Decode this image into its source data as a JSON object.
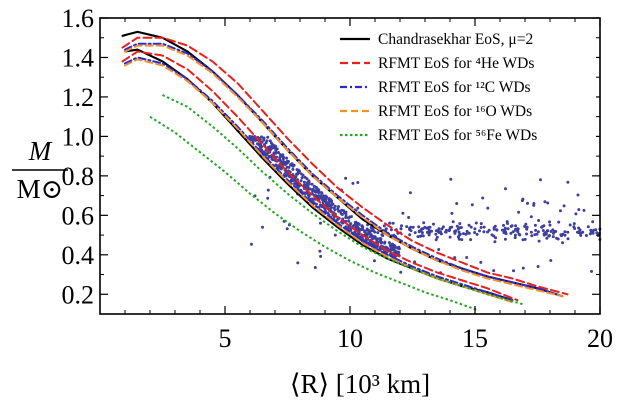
{
  "chart_data": {
    "type": "line",
    "xlabel": "⟨R⟩ [10³ km]",
    "ylabel_numerator": "M",
    "ylabel_denominator": "M⊙",
    "xlim": [
      0,
      20
    ],
    "ylim": [
      0.1,
      1.6
    ],
    "x_ticks": [
      "5",
      "10",
      "15",
      "20"
    ],
    "y_ticks": [
      "0.2",
      "0.4",
      "0.6",
      "0.8",
      "1.0",
      "1.2",
      "1.4",
      "1.6"
    ],
    "x_tick_values": [
      5,
      10,
      15,
      20
    ],
    "y_tick_values": [
      0.2,
      0.4,
      0.6,
      0.8,
      1.0,
      1.2,
      1.4,
      1.6
    ],
    "legend_position": "top-right",
    "grid": false,
    "legend": [
      {
        "key": "chandra",
        "label": "Chandrasekhar EoS, μ=2",
        "color": "#000000",
        "dash": ""
      },
      {
        "key": "he",
        "label": "RFMT EoS for ⁴He WDs",
        "color": "#e8201e",
        "dash": "8,4"
      },
      {
        "key": "c",
        "label": "RFMT EoS for ¹²C WDs",
        "color": "#2a2ad0",
        "dash": "7,3,2,3"
      },
      {
        "key": "o",
        "label": "RFMT EoS for ¹⁶O WDs",
        "color": "#f59226",
        "dash": "7,4"
      },
      {
        "key": "fe",
        "label": "RFMT EoS for ⁵⁶Fe WDs",
        "color": "#21a81f",
        "dash": "2.5,2.5"
      }
    ],
    "series": [
      {
        "key": "chandra",
        "points": [
          [
            0.9,
            1.51
          ],
          [
            1.5,
            1.53
          ],
          [
            2.5,
            1.5
          ],
          [
            3.5,
            1.43
          ],
          [
            4.5,
            1.33
          ],
          [
            5.5,
            1.21
          ],
          [
            6.5,
            1.07
          ],
          [
            7.5,
            0.93
          ],
          [
            8.5,
            0.8
          ],
          [
            9.5,
            0.69
          ],
          [
            10.5,
            0.58
          ],
          [
            11.5,
            0.5
          ],
          [
            12.5,
            0.43
          ],
          [
            13.5,
            0.37
          ],
          [
            14.5,
            0.33
          ],
          [
            15.5,
            0.29
          ],
          [
            16.5,
            0.26
          ],
          [
            17.5,
            0.23
          ],
          [
            18.5,
            0.19
          ]
        ]
      },
      {
        "key": "chandra",
        "points": [
          [
            1.0,
            1.43
          ],
          [
            1.5,
            1.44
          ],
          [
            2.5,
            1.38
          ],
          [
            3.5,
            1.29
          ],
          [
            4.5,
            1.17
          ],
          [
            5.5,
            1.03
          ],
          [
            6.5,
            0.89
          ],
          [
            7.5,
            0.76
          ],
          [
            8.5,
            0.64
          ],
          [
            9.5,
            0.54
          ],
          [
            10.5,
            0.45
          ],
          [
            11.5,
            0.38
          ],
          [
            12.5,
            0.33
          ],
          [
            13.5,
            0.28
          ],
          [
            14.5,
            0.24
          ],
          [
            15.5,
            0.21
          ],
          [
            16.5,
            0.17
          ]
        ]
      },
      {
        "key": "he",
        "points": [
          [
            0.9,
            1.45
          ],
          [
            1.5,
            1.5
          ],
          [
            2.5,
            1.5
          ],
          [
            3.5,
            1.46
          ],
          [
            4.5,
            1.38
          ],
          [
            5.5,
            1.27
          ],
          [
            6.5,
            1.13
          ],
          [
            7.5,
            0.99
          ],
          [
            8.5,
            0.86
          ],
          [
            9.5,
            0.74
          ],
          [
            10.5,
            0.64
          ],
          [
            11.5,
            0.55
          ],
          [
            12.5,
            0.47
          ],
          [
            13.5,
            0.41
          ],
          [
            14.5,
            0.36
          ],
          [
            15.5,
            0.31
          ],
          [
            16.5,
            0.28
          ],
          [
            17.5,
            0.24
          ],
          [
            18.7,
            0.2
          ]
        ]
      },
      {
        "key": "he",
        "points": [
          [
            0.9,
            1.38
          ],
          [
            1.5,
            1.43
          ],
          [
            2.5,
            1.41
          ],
          [
            3.5,
            1.34
          ],
          [
            4.5,
            1.23
          ],
          [
            5.5,
            1.1
          ],
          [
            6.5,
            0.96
          ],
          [
            7.5,
            0.82
          ],
          [
            8.5,
            0.7
          ],
          [
            9.5,
            0.59
          ],
          [
            10.5,
            0.5
          ],
          [
            11.5,
            0.42
          ],
          [
            12.5,
            0.36
          ],
          [
            13.5,
            0.31
          ],
          [
            14.5,
            0.27
          ],
          [
            15.5,
            0.23
          ],
          [
            16.7,
            0.17
          ]
        ]
      },
      {
        "key": "c",
        "points": [
          [
            1.0,
            1.44
          ],
          [
            1.5,
            1.47
          ],
          [
            2.5,
            1.47
          ],
          [
            3.5,
            1.42
          ],
          [
            4.5,
            1.33
          ],
          [
            5.5,
            1.21
          ],
          [
            6.5,
            1.08
          ],
          [
            7.5,
            0.94
          ],
          [
            8.5,
            0.81
          ],
          [
            9.5,
            0.7
          ],
          [
            10.5,
            0.6
          ],
          [
            11.5,
            0.51
          ],
          [
            12.5,
            0.44
          ],
          [
            13.5,
            0.38
          ],
          [
            14.5,
            0.33
          ],
          [
            15.5,
            0.29
          ],
          [
            16.5,
            0.26
          ],
          [
            17.5,
            0.23
          ],
          [
            18.5,
            0.19
          ]
        ]
      },
      {
        "key": "c",
        "points": [
          [
            1.0,
            1.37
          ],
          [
            1.5,
            1.4
          ],
          [
            2.5,
            1.37
          ],
          [
            3.5,
            1.29
          ],
          [
            4.5,
            1.18
          ],
          [
            5.5,
            1.05
          ],
          [
            6.5,
            0.91
          ],
          [
            7.5,
            0.78
          ],
          [
            8.5,
            0.66
          ],
          [
            9.5,
            0.56
          ],
          [
            10.5,
            0.47
          ],
          [
            11.5,
            0.4
          ],
          [
            12.5,
            0.34
          ],
          [
            13.5,
            0.29
          ],
          [
            14.5,
            0.25
          ],
          [
            15.5,
            0.21
          ],
          [
            16.5,
            0.17
          ]
        ]
      },
      {
        "key": "o",
        "points": [
          [
            1.0,
            1.43
          ],
          [
            1.5,
            1.46
          ],
          [
            2.5,
            1.46
          ],
          [
            3.5,
            1.41
          ],
          [
            4.5,
            1.32
          ],
          [
            5.5,
            1.2
          ],
          [
            6.5,
            1.07
          ],
          [
            7.5,
            0.93
          ],
          [
            8.5,
            0.8
          ],
          [
            9.5,
            0.69
          ],
          [
            10.5,
            0.59
          ],
          [
            11.5,
            0.5
          ],
          [
            12.5,
            0.43
          ],
          [
            13.5,
            0.37
          ],
          [
            14.5,
            0.32
          ],
          [
            15.5,
            0.28
          ],
          [
            16.5,
            0.25
          ],
          [
            17.5,
            0.22
          ],
          [
            18.5,
            0.19
          ]
        ]
      },
      {
        "key": "o",
        "points": [
          [
            1.0,
            1.36
          ],
          [
            1.5,
            1.39
          ],
          [
            2.5,
            1.36
          ],
          [
            3.5,
            1.28
          ],
          [
            4.5,
            1.17
          ],
          [
            5.5,
            1.04
          ],
          [
            6.5,
            0.9
          ],
          [
            7.5,
            0.77
          ],
          [
            8.5,
            0.65
          ],
          [
            9.5,
            0.55
          ],
          [
            10.5,
            0.46
          ],
          [
            11.5,
            0.39
          ],
          [
            12.5,
            0.33
          ],
          [
            13.5,
            0.28
          ],
          [
            14.5,
            0.24
          ],
          [
            15.5,
            0.2
          ],
          [
            16.5,
            0.16
          ]
        ]
      },
      {
        "key": "fe",
        "points": [
          [
            2.5,
            1.21
          ],
          [
            3.5,
            1.15
          ],
          [
            4.5,
            1.05
          ],
          [
            5.5,
            0.94
          ],
          [
            6.5,
            0.82
          ],
          [
            7.5,
            0.71
          ],
          [
            8.5,
            0.61
          ],
          [
            9.5,
            0.52
          ],
          [
            10.5,
            0.44
          ],
          [
            11.5,
            0.38
          ],
          [
            12.5,
            0.33
          ],
          [
            13.5,
            0.28
          ],
          [
            14.5,
            0.24
          ],
          [
            15.5,
            0.2
          ],
          [
            16.9,
            0.15
          ]
        ]
      },
      {
        "key": "fe",
        "points": [
          [
            2.0,
            1.1
          ],
          [
            3.0,
            1.02
          ],
          [
            4.0,
            0.92
          ],
          [
            5.0,
            0.82
          ],
          [
            6.0,
            0.71
          ],
          [
            7.0,
            0.61
          ],
          [
            8.0,
            0.52
          ],
          [
            9.0,
            0.44
          ],
          [
            10.0,
            0.37
          ],
          [
            11.0,
            0.31
          ],
          [
            12.0,
            0.26
          ],
          [
            13.0,
            0.21
          ],
          [
            14.0,
            0.17
          ],
          [
            15.1,
            0.12
          ]
        ]
      }
    ],
    "scatter": {
      "color": "#3f3f9f",
      "n_points": 1100,
      "x_range": [
        5,
        20
      ],
      "y_range": [
        0.25,
        1.0
      ]
    }
  }
}
